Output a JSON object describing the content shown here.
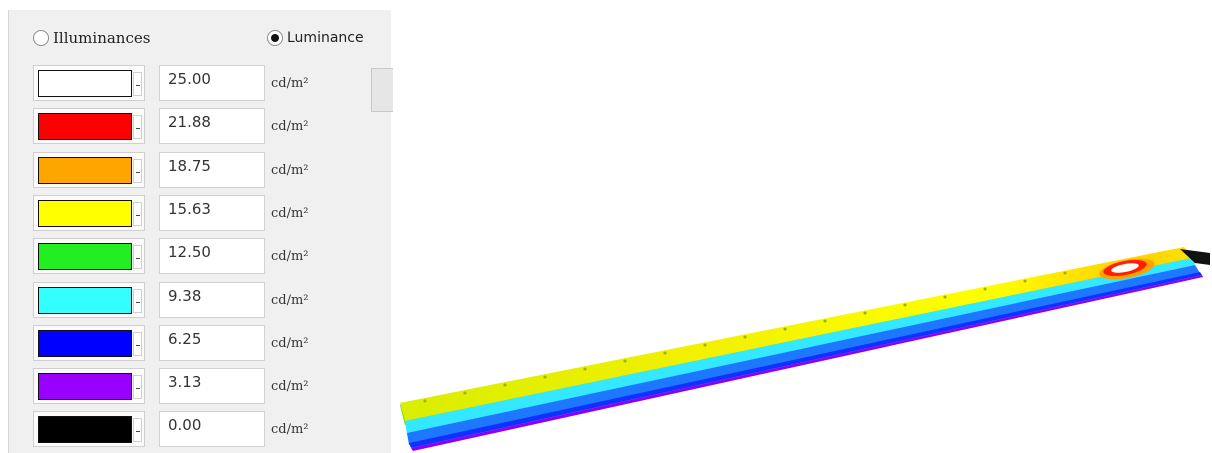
{
  "mode": {
    "illuminances_label": "Illuminances",
    "luminance_label": "Luminance",
    "selected": "luminance"
  },
  "legend": {
    "unit": "cd/m²",
    "rows": [
      {
        "value": "25.00",
        "color": "#ffffff"
      },
      {
        "value": "21.88",
        "color": "#ff0000"
      },
      {
        "value": "18.75",
        "color": "#ffa500"
      },
      {
        "value": "15.63",
        "color": "#ffff00"
      },
      {
        "value": "12.50",
        "color": "#22ee22"
      },
      {
        "value": "9.38",
        "color": "#33ffff"
      },
      {
        "value": "6.25",
        "color": "#0000ff"
      },
      {
        "value": "3.13",
        "color": "#9900ff"
      },
      {
        "value": "0.00",
        "color": "#000000"
      }
    ]
  },
  "visualization": {
    "name": "road luminance false-color rendering"
  }
}
